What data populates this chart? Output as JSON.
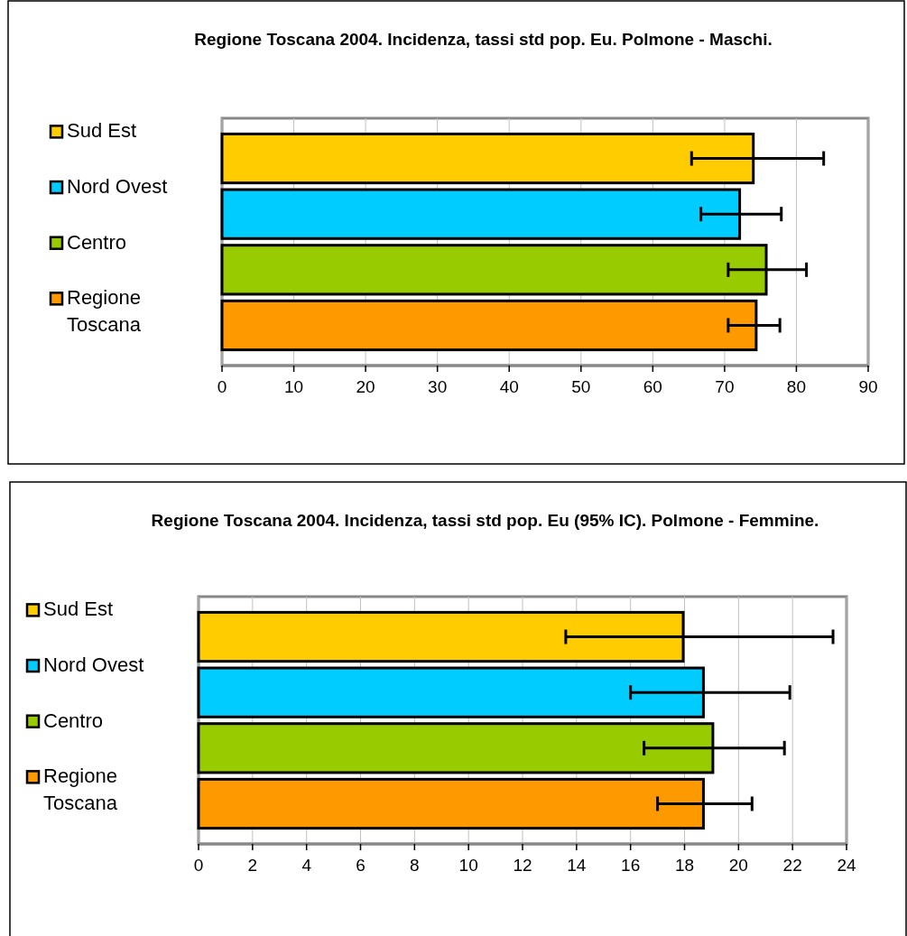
{
  "chart_data": [
    {
      "type": "bar",
      "orientation": "horizontal",
      "title": "Regione Toscana 2004. Incidenza, tassi std pop. Eu. Polmone - Maschi.",
      "categories": [
        null
      ],
      "xlim": [
        0,
        90
      ],
      "xticks": [
        0,
        10,
        20,
        30,
        40,
        50,
        60,
        70,
        80,
        90
      ],
      "grid": "x",
      "legend": "left",
      "series": [
        {
          "name": "Sud Est",
          "color": "#ffcc00",
          "values": [
            74.0
          ],
          "errors": [
            [
              65.4,
              83.8
            ]
          ]
        },
        {
          "name": "Nord Ovest",
          "color": "#00ccff",
          "values": [
            72.1
          ],
          "errors": [
            [
              66.7,
              77.9
            ]
          ]
        },
        {
          "name": "Centro",
          "color": "#99cc00",
          "values": [
            75.8
          ],
          "errors": [
            [
              70.5,
              81.4
            ]
          ]
        },
        {
          "name": "Regione Toscana",
          "color": "#ff9900",
          "values": [
            74.4
          ],
          "errors": [
            [
              70.5,
              77.7
            ]
          ]
        }
      ]
    },
    {
      "type": "bar",
      "orientation": "horizontal",
      "title": "Regione Toscana 2004. Incidenza, tassi std pop. Eu (95% IC). Polmone - Femmine.",
      "categories": [
        null
      ],
      "xlim": [
        0,
        24
      ],
      "xticks": [
        0,
        2,
        4,
        6,
        8,
        10,
        12,
        14,
        16,
        18,
        20,
        22,
        24
      ],
      "grid": "x",
      "legend": "left",
      "series": [
        {
          "name": "Sud Est",
          "color": "#ffcc00",
          "values": [
            17.95
          ],
          "errors": [
            [
              13.6,
              23.5
            ]
          ]
        },
        {
          "name": "Nord Ovest",
          "color": "#00ccff",
          "values": [
            18.7
          ],
          "errors": [
            [
              16.0,
              21.9
            ]
          ]
        },
        {
          "name": "Centro",
          "color": "#99cc00",
          "values": [
            19.05
          ],
          "errors": [
            [
              16.5,
              21.7
            ]
          ]
        },
        {
          "name": "Regione Toscana",
          "color": "#ff9900",
          "values": [
            18.7
          ],
          "errors": [
            [
              17.0,
              20.5
            ]
          ]
        }
      ]
    }
  ]
}
